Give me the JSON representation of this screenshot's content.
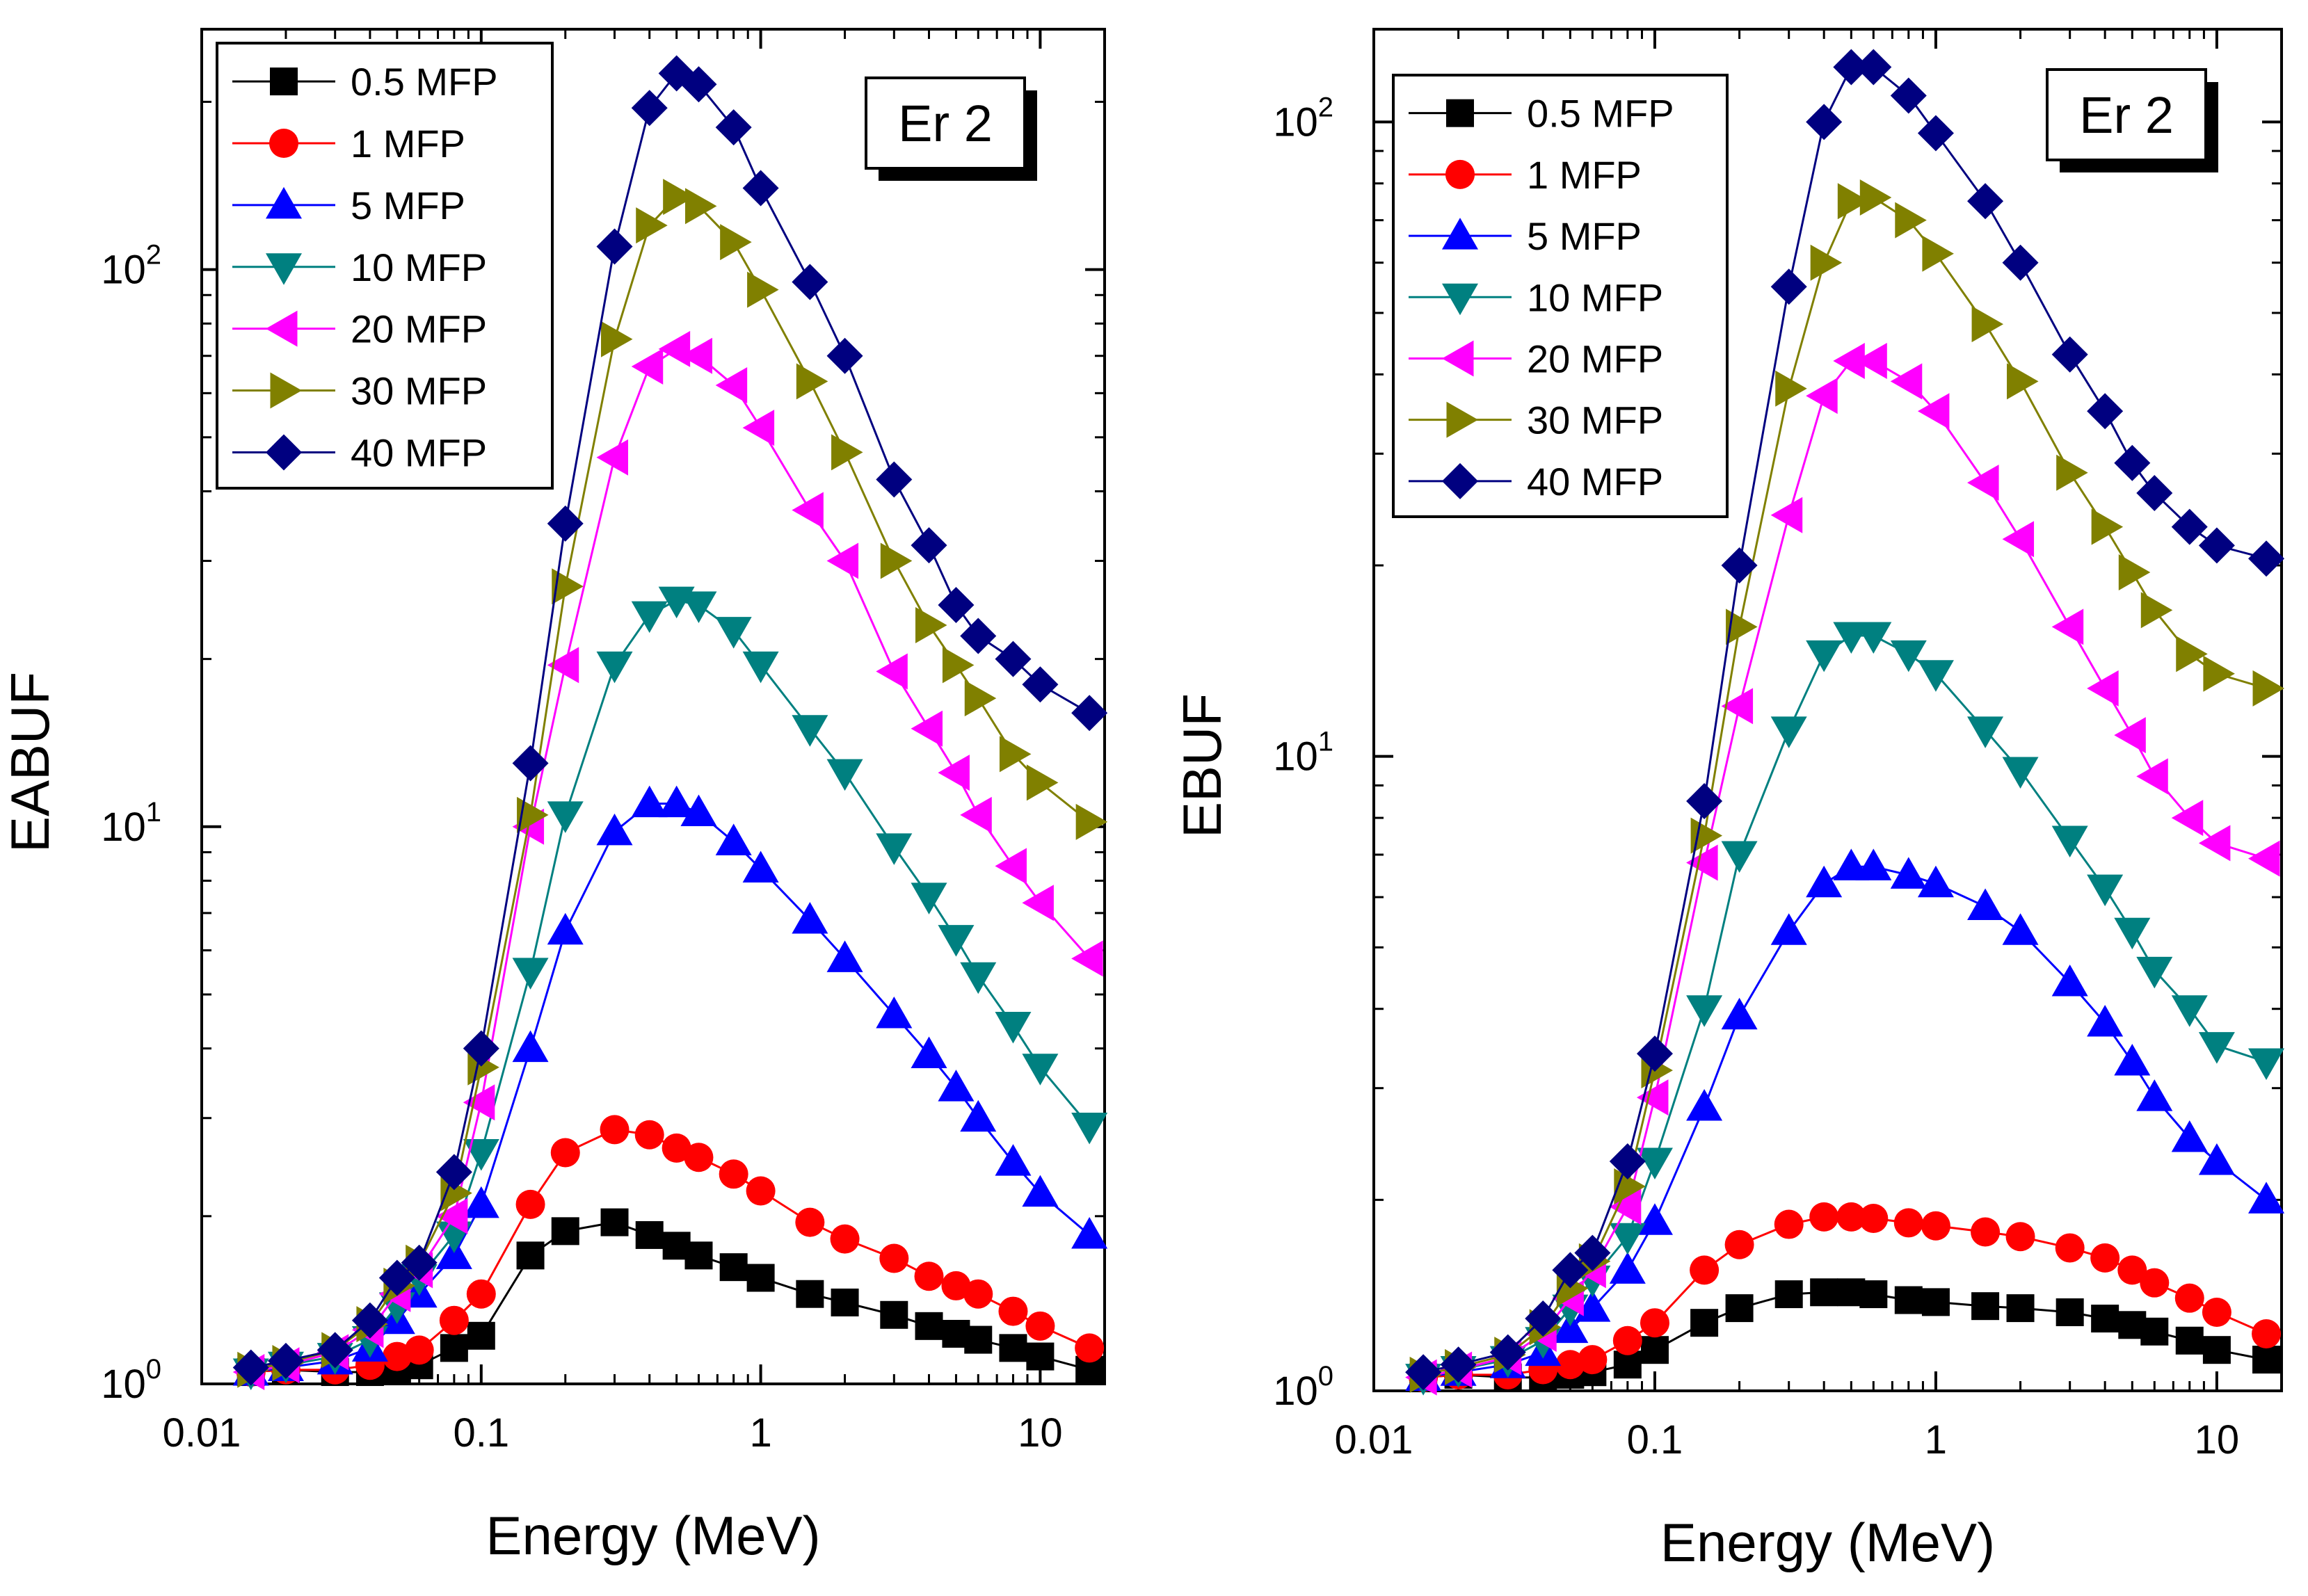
{
  "figure": {
    "x_ticks": [
      "0.01",
      "0.1",
      "1",
      "10"
    ],
    "legend_entries": [
      "0.5 MFP",
      "1 MFP",
      "5 MFP",
      "10 MFP",
      "20 MFP",
      "30 MFP",
      "40 MFP"
    ]
  },
  "chart_data": [
    {
      "type": "line",
      "title": "",
      "badge": "Er 2",
      "xlabel": "Energy (MeV)",
      "ylabel": "EABUF",
      "xscale": "log",
      "yscale": "log",
      "xlim": [
        0.01,
        17
      ],
      "ylim": [
        1,
        270
      ],
      "y_ticks": [
        {
          "base": "10",
          "exp": "0"
        },
        {
          "base": "10",
          "exp": "1"
        },
        {
          "base": "10",
          "exp": "2"
        }
      ],
      "legend_position": "top-left",
      "x": [
        0.015,
        0.02,
        0.03,
        0.04,
        0.05,
        0.06,
        0.08,
        0.1,
        0.15,
        0.2,
        0.3,
        0.4,
        0.5,
        0.6,
        0.8,
        1,
        1.5,
        2,
        3,
        4,
        5,
        6,
        8,
        10,
        15
      ],
      "series": [
        {
          "name": "0.5 MFP",
          "color": "#000000",
          "marker": "square",
          "values": [
            1.05,
            1.06,
            1.05,
            1.05,
            1.06,
            1.08,
            1.16,
            1.22,
            1.7,
            1.88,
            1.95,
            1.85,
            1.77,
            1.7,
            1.62,
            1.55,
            1.45,
            1.4,
            1.33,
            1.27,
            1.23,
            1.2,
            1.16,
            1.12,
            1.06
          ]
        },
        {
          "name": "1 MFP",
          "color": "#ff0000",
          "marker": "circle",
          "values": [
            1.05,
            1.06,
            1.06,
            1.08,
            1.12,
            1.15,
            1.3,
            1.45,
            2.1,
            2.6,
            2.86,
            2.8,
            2.65,
            2.55,
            2.38,
            2.22,
            1.95,
            1.82,
            1.68,
            1.56,
            1.5,
            1.45,
            1.35,
            1.27,
            1.16
          ]
        },
        {
          "name": "5 MFP",
          "color": "#0000ff",
          "marker": "triangle-up",
          "values": [
            1.05,
            1.07,
            1.1,
            1.16,
            1.3,
            1.45,
            1.7,
            2.1,
            4.0,
            6.5,
            9.8,
            11.0,
            11.0,
            10.6,
            9.4,
            8.4,
            6.8,
            5.8,
            4.6,
            3.9,
            3.4,
            3.0,
            2.5,
            2.2,
            1.85
          ]
        },
        {
          "name": "10 MFP",
          "color": "#008080",
          "marker": "triangle-down",
          "values": [
            1.05,
            1.08,
            1.12,
            1.2,
            1.38,
            1.55,
            1.85,
            2.6,
            5.5,
            10.5,
            19.5,
            24.0,
            25.5,
            25.0,
            22.5,
            19.5,
            15.0,
            12.5,
            9.2,
            7.5,
            6.3,
            5.4,
            4.4,
            3.7,
            2.9
          ]
        },
        {
          "name": "20 MFP",
          "color": "#ff00ff",
          "marker": "triangle-left",
          "values": [
            1.05,
            1.08,
            1.14,
            1.25,
            1.45,
            1.6,
            2.0,
            3.2,
            10.0,
            19.5,
            46.0,
            67.0,
            72.0,
            70.0,
            62.0,
            52.0,
            37.0,
            30.0,
            19.0,
            15.0,
            12.5,
            10.5,
            8.5,
            7.3,
            5.8
          ]
        },
        {
          "name": "30 MFP",
          "color": "#808000",
          "marker": "triangle-right",
          "values": [
            1.06,
            1.09,
            1.15,
            1.28,
            1.5,
            1.65,
            2.2,
            3.7,
            10.5,
            27.0,
            75.0,
            120.0,
            135.0,
            130.0,
            112.0,
            92.0,
            63.0,
            47.0,
            30.0,
            23.0,
            19.5,
            17.0,
            13.5,
            12.0,
            10.2
          ]
        },
        {
          "name": "40 MFP",
          "color": "#000080",
          "marker": "diamond",
          "values": [
            1.07,
            1.1,
            1.15,
            1.3,
            1.55,
            1.65,
            2.4,
            4.0,
            13.0,
            35.0,
            110.0,
            195.0,
            225.0,
            215.0,
            180.0,
            140.0,
            95.0,
            70.0,
            42.0,
            32.0,
            25.0,
            22.0,
            20.0,
            18.0,
            16.0
          ]
        }
      ]
    },
    {
      "type": "line",
      "title": "",
      "badge": "Er 2",
      "xlabel": "Energy (MeV)",
      "ylabel": "EBUF",
      "xscale": "log",
      "yscale": "log",
      "xlim": [
        0.01,
        17
      ],
      "ylim": [
        1,
        140
      ],
      "y_ticks": [
        {
          "base": "10",
          "exp": "0"
        },
        {
          "base": "10",
          "exp": "1"
        },
        {
          "base": "10",
          "exp": "2"
        }
      ],
      "legend_position": "top-left",
      "x": [
        0.015,
        0.02,
        0.03,
        0.04,
        0.05,
        0.06,
        0.08,
        0.1,
        0.15,
        0.2,
        0.3,
        0.4,
        0.5,
        0.6,
        0.8,
        1,
        1.5,
        2,
        3,
        4,
        5,
        6,
        8,
        10,
        15
      ],
      "series": [
        {
          "name": "0.5 MFP",
          "color": "#000000",
          "marker": "square",
          "values": [
            1.05,
            1.06,
            1.05,
            1.05,
            1.06,
            1.07,
            1.1,
            1.16,
            1.28,
            1.35,
            1.42,
            1.43,
            1.43,
            1.42,
            1.39,
            1.38,
            1.36,
            1.35,
            1.33,
            1.3,
            1.27,
            1.24,
            1.2,
            1.16,
            1.12
          ]
        },
        {
          "name": "1 MFP",
          "color": "#ff0000",
          "marker": "circle",
          "values": [
            1.05,
            1.06,
            1.06,
            1.08,
            1.1,
            1.12,
            1.2,
            1.28,
            1.55,
            1.7,
            1.83,
            1.88,
            1.88,
            1.87,
            1.84,
            1.82,
            1.78,
            1.75,
            1.68,
            1.62,
            1.55,
            1.48,
            1.4,
            1.33,
            1.23
          ]
        },
        {
          "name": "5 MFP",
          "color": "#0000ff",
          "marker": "triangle-up",
          "values": [
            1.05,
            1.07,
            1.1,
            1.15,
            1.25,
            1.35,
            1.55,
            1.85,
            2.8,
            3.9,
            5.3,
            6.3,
            6.7,
            6.7,
            6.5,
            6.3,
            5.8,
            5.3,
            4.4,
            3.8,
            3.3,
            2.9,
            2.5,
            2.3,
            2.0
          ]
        },
        {
          "name": "10 MFP",
          "color": "#008080",
          "marker": "triangle-down",
          "values": [
            1.05,
            1.08,
            1.12,
            1.2,
            1.35,
            1.5,
            1.75,
            2.3,
            4.0,
            7.0,
            11.0,
            14.5,
            15.5,
            15.5,
            14.5,
            13.5,
            11.0,
            9.5,
            7.4,
            6.2,
            5.3,
            4.6,
            4.0,
            3.5,
            3.3
          ]
        },
        {
          "name": "20 MFP",
          "color": "#ff00ff",
          "marker": "triangle-left",
          "values": [
            1.05,
            1.08,
            1.13,
            1.23,
            1.4,
            1.55,
            1.95,
            2.9,
            6.8,
            12.0,
            24.0,
            37.0,
            42.0,
            42.0,
            39.0,
            35.0,
            27.0,
            22.0,
            16.0,
            12.8,
            10.8,
            9.3,
            8.0,
            7.3,
            6.9
          ]
        },
        {
          "name": "30 MFP",
          "color": "#808000",
          "marker": "triangle-right",
          "values": [
            1.06,
            1.09,
            1.14,
            1.26,
            1.45,
            1.6,
            2.1,
            3.2,
            7.5,
            16.0,
            38.0,
            60.0,
            75.0,
            76.0,
            70.0,
            62.0,
            48.0,
            39.0,
            28.0,
            23.0,
            19.5,
            17.0,
            14.5,
            13.5,
            12.8
          ]
        },
        {
          "name": "40 MFP",
          "color": "#000080",
          "marker": "diamond",
          "values": [
            1.07,
            1.1,
            1.15,
            1.3,
            1.55,
            1.65,
            2.3,
            3.4,
            8.5,
            20.0,
            55.0,
            100.0,
            122.0,
            122.0,
            110.0,
            96.0,
            75.0,
            60.0,
            43.0,
            35.0,
            29.0,
            26.0,
            23.0,
            21.5,
            20.5
          ]
        }
      ]
    }
  ]
}
